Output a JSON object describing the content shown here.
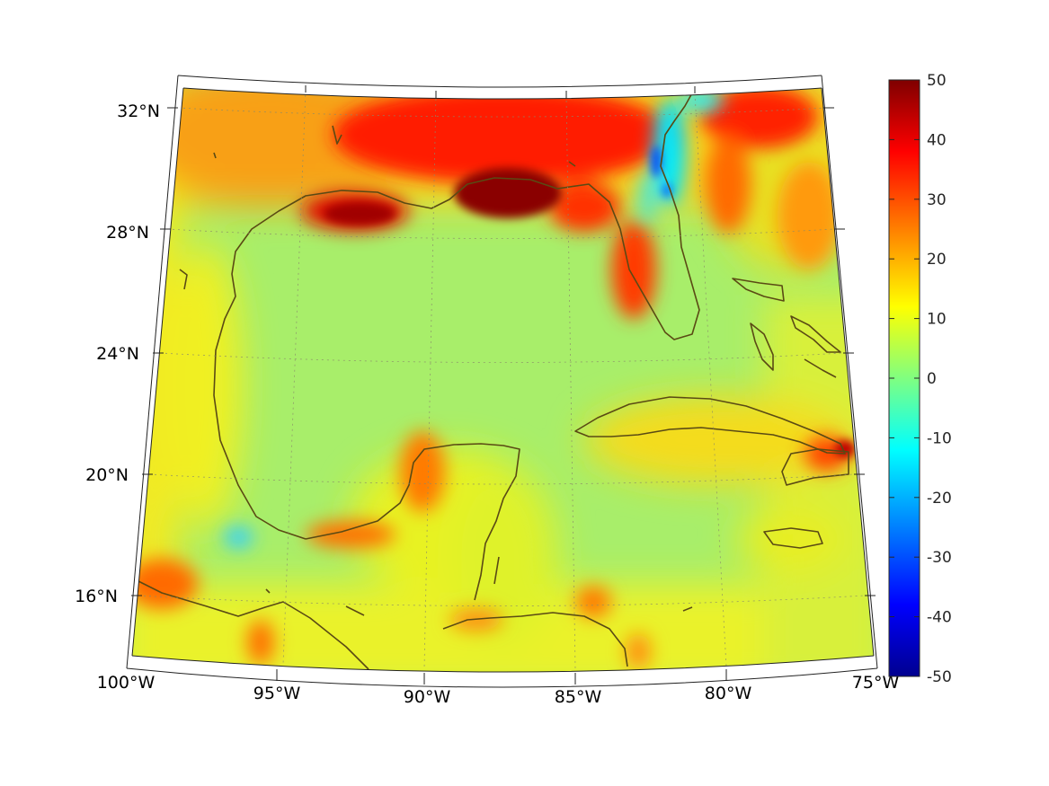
{
  "map": {
    "projection": "conic",
    "colormap": "jet",
    "region": "Gulf of Mexico and Caribbean",
    "land_outline_color": "#5a4a14",
    "grid": "dotted",
    "lon_labels": [
      "100°W",
      "95°W",
      "90°W",
      "85°W",
      "80°W",
      "75°W"
    ],
    "lat_labels": [
      "32°N",
      "28°N",
      "24°N",
      "20°N",
      "16°N"
    ]
  },
  "colorbar": {
    "min": -50,
    "max": 50,
    "ticks": [
      "50",
      "40",
      "30",
      "20",
      "10",
      "0",
      "-10",
      "-20",
      "-30",
      "-40",
      "-50"
    ],
    "colors": [
      "#7f0000",
      "#ff0000",
      "#ffff00",
      "#80ff80",
      "#00ffff",
      "#0000ff",
      "#00008f"
    ]
  }
}
